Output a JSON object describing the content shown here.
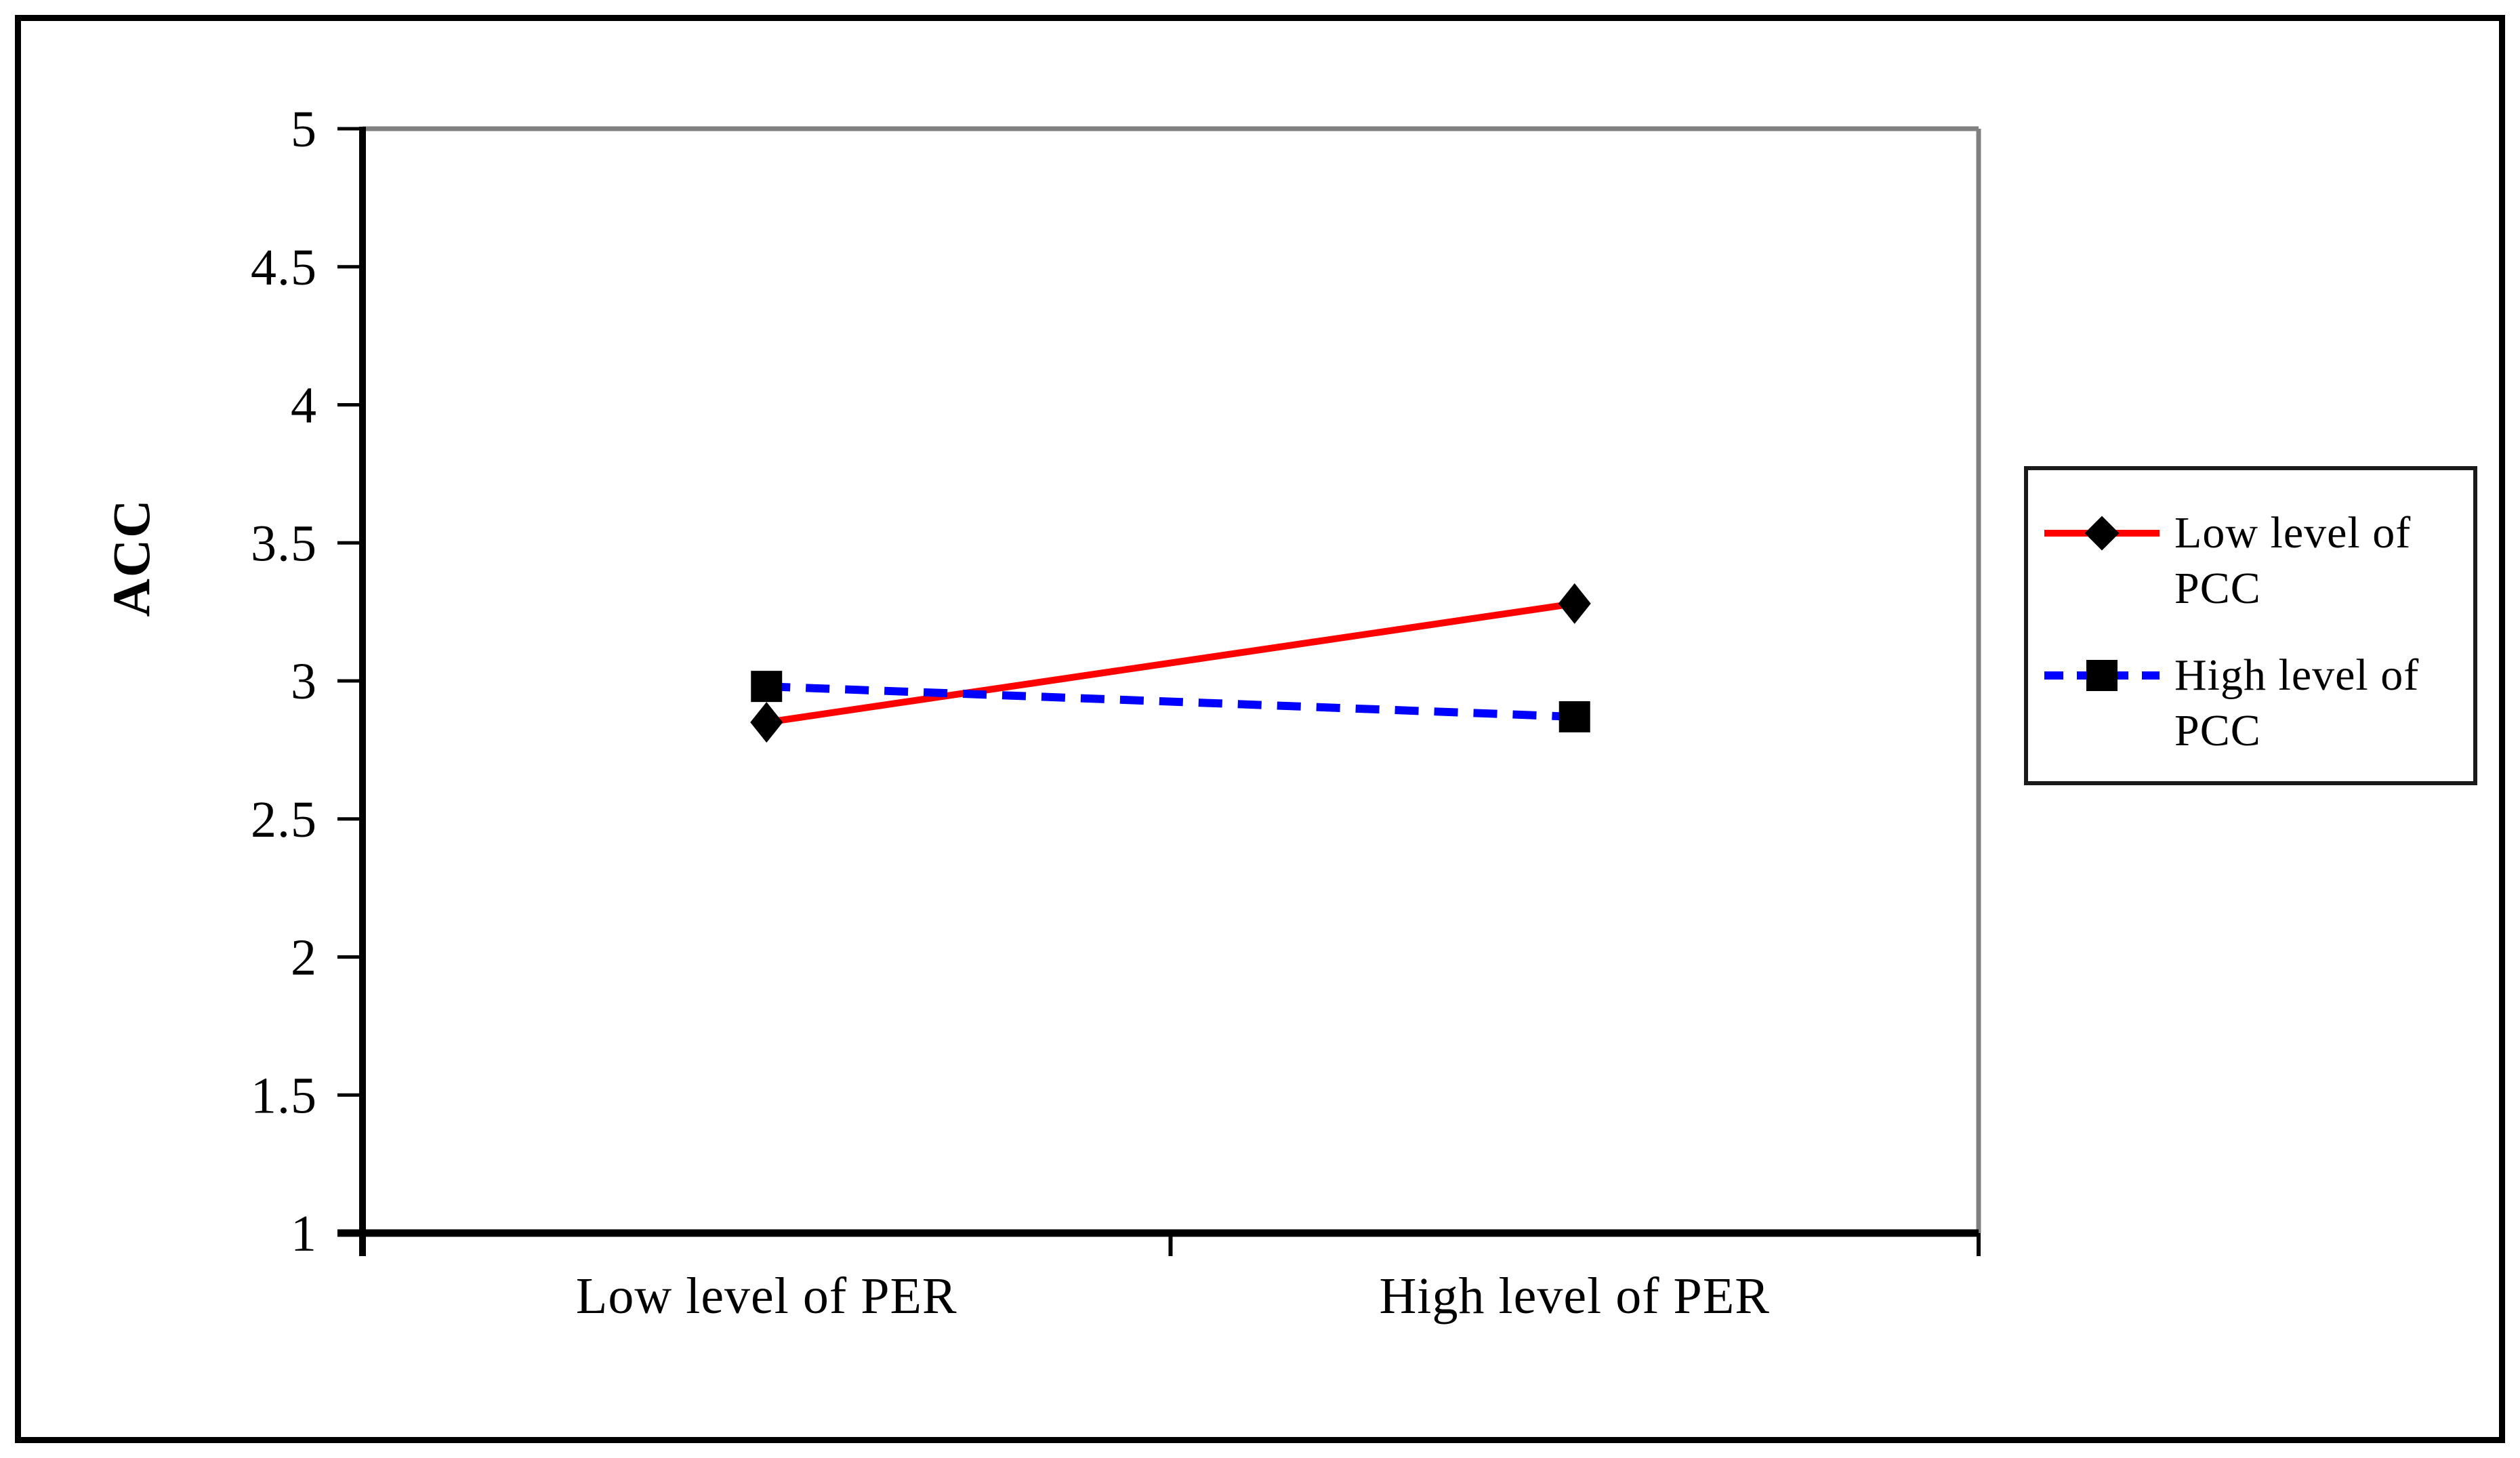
{
  "figure": {
    "background": "#ffffff",
    "outer_border_color": "#000000"
  },
  "chart_data": {
    "type": "line",
    "title": "",
    "xlabel": "",
    "ylabel": "ACC",
    "categories": [
      "Low level of PER",
      "High level of PER"
    ],
    "series": [
      {
        "name": "Low level of PCC",
        "values": [
          2.85,
          3.28
        ],
        "color": "#ff0000",
        "line_style": "solid",
        "marker": "diamond",
        "marker_color": "#000000"
      },
      {
        "name": "High level of PCC",
        "values": [
          2.98,
          2.87
        ],
        "color": "#0000ff",
        "line_style": "dashed",
        "marker": "square",
        "marker_color": "#000000"
      }
    ],
    "ylim": [
      1,
      5
    ],
    "ytick_step": 0.5,
    "ytick_labels": [
      "5",
      "4.5",
      "4",
      "3.5",
      "3",
      "2.5",
      "2",
      "1.5",
      "1"
    ],
    "grid": false,
    "legend_position": "right",
    "plot_frame_color": "#808080",
    "axis_color": "#000000"
  }
}
